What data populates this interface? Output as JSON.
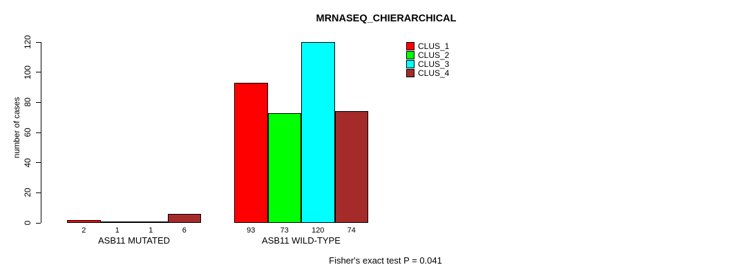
{
  "chart_data": {
    "type": "bar",
    "title": "MRNASEQ_CHIERARCHICAL",
    "ylabel": "number of cases",
    "ylim": [
      0,
      120
    ],
    "yticks": [
      0,
      20,
      40,
      60,
      80,
      100,
      120
    ],
    "grid": false,
    "legend_position": "top-right",
    "bar_value_labels_shown": true,
    "categories": [
      "ASB11 MUTATED",
      "ASB11 WILD-TYPE"
    ],
    "groups": [
      {
        "label": "ASB11 MUTATED",
        "values": [
          2,
          1,
          1,
          6
        ]
      },
      {
        "label": "ASB11 WILD-TYPE",
        "values": [
          93,
          73,
          120,
          74
        ]
      }
    ],
    "series": [
      {
        "name": "CLUS_1",
        "color": "#FF0000"
      },
      {
        "name": "CLUS_2",
        "color": "#00FF00"
      },
      {
        "name": "CLUS_3",
        "color": "#00FFFF"
      },
      {
        "name": "CLUS_4",
        "color": "#A52A2A"
      }
    ],
    "annotation": "Fisher's exact test P = 0.041"
  },
  "colors": {
    "axis": "#000000",
    "text": "#000000",
    "background": "#FFFFFF"
  }
}
